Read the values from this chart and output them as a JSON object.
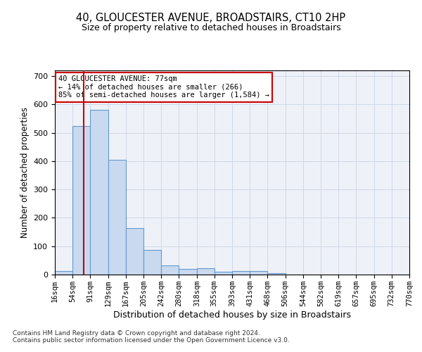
{
  "title": "40, GLOUCESTER AVENUE, BROADSTAIRS, CT10 2HP",
  "subtitle": "Size of property relative to detached houses in Broadstairs",
  "xlabel": "Distribution of detached houses by size in Broadstairs",
  "ylabel": "Number of detached properties",
  "bin_edges": [
    16,
    54,
    91,
    129,
    167,
    205,
    242,
    280,
    318,
    355,
    393,
    431,
    468,
    506,
    544,
    582,
    619,
    657,
    695,
    732,
    770
  ],
  "bin_heights": [
    13,
    525,
    580,
    405,
    165,
    88,
    32,
    20,
    22,
    10,
    12,
    12,
    5,
    0,
    0,
    0,
    0,
    0,
    0,
    0
  ],
  "bar_color": "#c9d9ef",
  "bar_edge_color": "#6699cc",
  "vline_x": 77,
  "vline_color": "#cc0000",
  "annotation_text": "40 GLOUCESTER AVENUE: 77sqm\n← 14% of detached houses are smaller (266)\n85% of semi-detached houses are larger (1,584) →",
  "annotation_box_color": "#ffffff",
  "annotation_box_edge": "#cc0000",
  "ylim": [
    0,
    720
  ],
  "yticks": [
    0,
    100,
    200,
    300,
    400,
    500,
    600,
    700
  ],
  "grid_color": "#d0d8e8",
  "background_color": "#eef2f8",
  "tick_labels": [
    "16sqm",
    "54sqm",
    "91sqm",
    "129sqm",
    "167sqm",
    "205sqm",
    "242sqm",
    "280sqm",
    "318sqm",
    "355sqm",
    "393sqm",
    "431sqm",
    "468sqm",
    "506sqm",
    "544sqm",
    "582sqm",
    "619sqm",
    "657sqm",
    "695sqm",
    "732sqm",
    "770sqm"
  ],
  "footnote1": "Contains HM Land Registry data © Crown copyright and database right 2024.",
  "footnote2": "Contains public sector information licensed under the Open Government Licence v3.0."
}
